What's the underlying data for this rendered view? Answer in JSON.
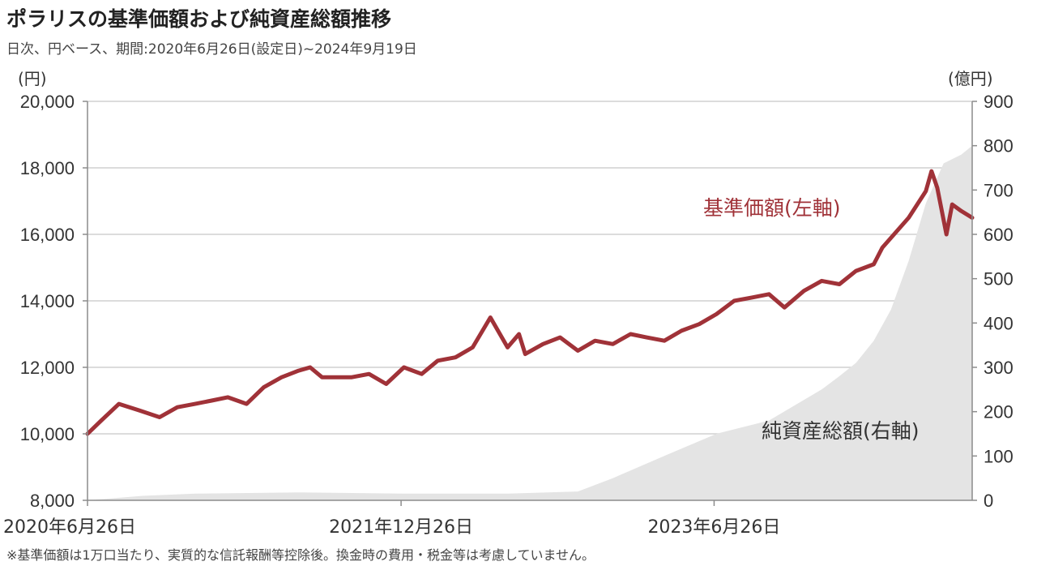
{
  "title": "ポラリスの基準価額および純資産総額推移",
  "subtitle": "日次、円ベース、期間:2020年6月26日(設定日)~2024年9月19日",
  "footnote": "※基準価額は1万口当たり、実質的な信託報酬等控除後。換金時の費用・税金等は考慮していません。",
  "colors": {
    "nav_line": "#a03238",
    "aum_area": "#e4e4e4",
    "grid": "#d0d0d0",
    "axis": "#8c8c8c"
  },
  "chart_data": {
    "type": "line",
    "x_type": "date",
    "x_range": [
      "2020-06-26",
      "2024-09-19"
    ],
    "left_axis": {
      "unit_label": "(円)",
      "ylim": [
        8000,
        20000
      ],
      "ticks": [
        8000,
        10000,
        12000,
        14000,
        16000,
        18000,
        20000
      ],
      "tick_labels": [
        "8,000",
        "10,000",
        "12,000",
        "14,000",
        "16,000",
        "18,000",
        "20,000"
      ]
    },
    "right_axis": {
      "unit_label": "(億円)",
      "ylim": [
        0,
        900
      ],
      "ticks": [
        0,
        100,
        200,
        300,
        400,
        500,
        600,
        700,
        800,
        900
      ],
      "tick_labels": [
        "0",
        "100",
        "200",
        "300",
        "400",
        "500",
        "600",
        "700",
        "800",
        "900"
      ]
    },
    "x_ticks": [
      {
        "date": "2020-06-26",
        "label": "2020年6月26日"
      },
      {
        "date": "2021-12-26",
        "label": "2021年12月26日"
      },
      {
        "date": "2023-06-26",
        "label": "2023年6月26日"
      }
    ],
    "grid": true,
    "series": [
      {
        "name": "基準価額(左軸)",
        "type": "line",
        "axis": "left",
        "points": [
          [
            "2020-06-26",
            10000
          ],
          [
            "2020-07-20",
            10400
          ],
          [
            "2020-08-20",
            10900
          ],
          [
            "2020-09-25",
            10700
          ],
          [
            "2020-10-30",
            10500
          ],
          [
            "2020-11-30",
            10800
          ],
          [
            "2020-12-31",
            10900
          ],
          [
            "2021-01-29",
            11000
          ],
          [
            "2021-02-26",
            11100
          ],
          [
            "2021-03-31",
            10900
          ],
          [
            "2021-04-30",
            11400
          ],
          [
            "2021-05-31",
            11700
          ],
          [
            "2021-06-30",
            11900
          ],
          [
            "2021-07-20",
            12000
          ],
          [
            "2021-08-10",
            11700
          ],
          [
            "2021-09-30",
            11700
          ],
          [
            "2021-10-31",
            11800
          ],
          [
            "2021-11-30",
            11500
          ],
          [
            "2021-12-31",
            12000
          ],
          [
            "2022-01-31",
            11800
          ],
          [
            "2022-02-28",
            12200
          ],
          [
            "2022-03-31",
            12300
          ],
          [
            "2022-04-30",
            12600
          ],
          [
            "2022-05-31",
            13500
          ],
          [
            "2022-06-30",
            12600
          ],
          [
            "2022-07-20",
            13000
          ],
          [
            "2022-07-31",
            12400
          ],
          [
            "2022-08-31",
            12700
          ],
          [
            "2022-09-30",
            12900
          ],
          [
            "2022-10-31",
            12500
          ],
          [
            "2022-11-30",
            12800
          ],
          [
            "2022-12-31",
            12700
          ],
          [
            "2023-01-31",
            13000
          ],
          [
            "2023-02-28",
            12900
          ],
          [
            "2023-03-31",
            12800
          ],
          [
            "2023-04-30",
            13100
          ],
          [
            "2023-05-31",
            13300
          ],
          [
            "2023-06-30",
            13600
          ],
          [
            "2023-07-31",
            14000
          ],
          [
            "2023-08-31",
            14100
          ],
          [
            "2023-09-30",
            14200
          ],
          [
            "2023-10-27",
            13800
          ],
          [
            "2023-11-30",
            14300
          ],
          [
            "2023-12-31",
            14600
          ],
          [
            "2024-01-31",
            14500
          ],
          [
            "2024-02-29",
            14900
          ],
          [
            "2024-03-31",
            15100
          ],
          [
            "2024-04-15",
            15600
          ],
          [
            "2024-05-31",
            16500
          ],
          [
            "2024-06-30",
            17300
          ],
          [
            "2024-07-10",
            17900
          ],
          [
            "2024-07-20",
            17400
          ],
          [
            "2024-08-05",
            16000
          ],
          [
            "2024-08-15",
            16900
          ],
          [
            "2024-08-31",
            16700
          ],
          [
            "2024-09-19",
            16500
          ]
        ]
      },
      {
        "name": "純資産総額(右軸)",
        "type": "area",
        "axis": "right",
        "points": [
          [
            "2020-06-26",
            0
          ],
          [
            "2020-09-30",
            10
          ],
          [
            "2020-12-31",
            15
          ],
          [
            "2021-06-30",
            18
          ],
          [
            "2021-12-31",
            15
          ],
          [
            "2022-06-30",
            15
          ],
          [
            "2022-10-31",
            20
          ],
          [
            "2022-12-31",
            50
          ],
          [
            "2023-03-31",
            100
          ],
          [
            "2023-06-30",
            150
          ],
          [
            "2023-09-30",
            180
          ],
          [
            "2023-12-31",
            250
          ],
          [
            "2024-01-31",
            280
          ],
          [
            "2024-02-29",
            310
          ],
          [
            "2024-03-31",
            360
          ],
          [
            "2024-04-30",
            430
          ],
          [
            "2024-05-31",
            540
          ],
          [
            "2024-06-30",
            670
          ],
          [
            "2024-07-31",
            760
          ],
          [
            "2024-08-31",
            780
          ],
          [
            "2024-09-19",
            800
          ]
        ]
      }
    ],
    "annotations": [
      "基準価額(左軸)",
      "純資産総額(右軸)"
    ]
  }
}
